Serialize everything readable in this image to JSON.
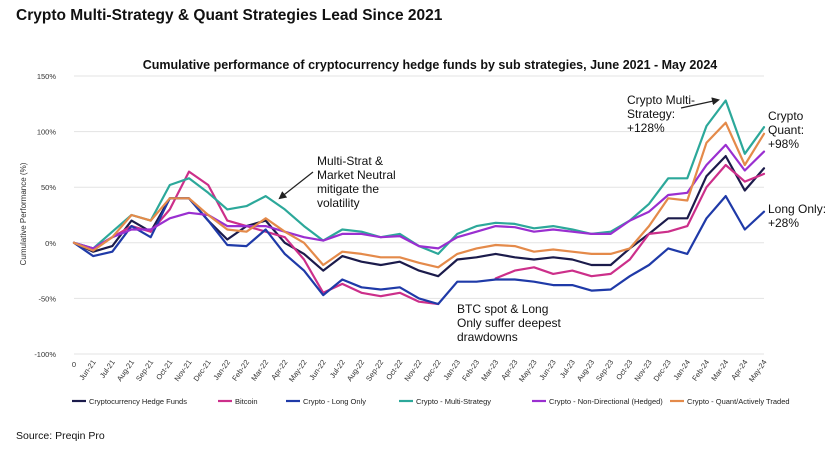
{
  "page": {
    "heading": "Crypto Multi-Strategy & Quant Strategies Lead Since 2021",
    "source": "Source: Preqin Pro"
  },
  "chart_data": {
    "type": "line",
    "title": "Cumulative performance of cryptocurrency hedge funds by sub strategies, June 2021 - May 2024",
    "xlabel": "",
    "ylabel": "Cumulative Performance (%)",
    "ylim": [
      -100,
      150
    ],
    "yticks": [
      -100,
      -50,
      0,
      50,
      100,
      150
    ],
    "ytick_labels": [
      "-100%",
      "-50%",
      "0%",
      "50%",
      "100%",
      "150%"
    ],
    "grid": true,
    "legend_position": "bottom",
    "categories": [
      "0",
      "Jun-21",
      "Jul-21",
      "Aug-21",
      "Sep-21",
      "Oct-21",
      "Nov-21",
      "Dec-21",
      "Jan-22",
      "Feb-22",
      "Mar-22",
      "Apr-22",
      "May-22",
      "Jun-22",
      "Jul-22",
      "Aug-22",
      "Sep-22",
      "Oct-22",
      "Nov-22",
      "Dec-22",
      "Jan-23",
      "Feb-23",
      "Mar-23",
      "Apr-23",
      "May-23",
      "Jun-23",
      "Jul-23",
      "Aug-23",
      "Sep-23",
      "Oct-23",
      "Nov-23",
      "Dec-23",
      "Jan-24",
      "Feb-24",
      "Mar-24",
      "Apr-24",
      "May-24"
    ],
    "series": [
      {
        "name": "Cryptocurrency Hedge Funds",
        "color": "#1b1b4b",
        "values": [
          0,
          -8,
          -3,
          20,
          10,
          40,
          40,
          20,
          3,
          15,
          20,
          0,
          -10,
          -25,
          -12,
          -17,
          -20,
          -17,
          -25,
          -30,
          -15,
          -13,
          -10,
          -13,
          -15,
          -13,
          -15,
          -20,
          -20,
          -5,
          8,
          22,
          22,
          60,
          78,
          47,
          67
        ]
      },
      {
        "name": "Bitcoin",
        "color": "#cc2f8a",
        "values": [
          0,
          -5,
          5,
          15,
          10,
          30,
          64,
          52,
          20,
          15,
          10,
          5,
          -15,
          -45,
          -37,
          -45,
          -48,
          -45,
          -53,
          -55,
          null,
          null,
          -32,
          -25,
          -22,
          -28,
          -25,
          -30,
          -28,
          -15,
          8,
          10,
          15,
          50,
          70,
          55,
          62
        ]
      },
      {
        "name": "Crypto - Long Only",
        "color": "#1f3aa8",
        "values": [
          0,
          -12,
          -8,
          15,
          5,
          40,
          40,
          20,
          -2,
          -3,
          12,
          -10,
          -25,
          -47,
          -33,
          -40,
          -42,
          -40,
          -50,
          -55,
          -35,
          -35,
          -33,
          -33,
          -35,
          -38,
          -38,
          -43,
          -42,
          -30,
          -20,
          -5,
          -10,
          22,
          42,
          12,
          28
        ]
      },
      {
        "name": "Crypto - Multi-Strategy",
        "color": "#2ca89a",
        "values": [
          0,
          -5,
          10,
          25,
          20,
          52,
          58,
          45,
          30,
          33,
          42,
          30,
          15,
          2,
          12,
          10,
          5,
          8,
          -3,
          -10,
          8,
          15,
          18,
          17,
          13,
          15,
          12,
          8,
          10,
          20,
          35,
          58,
          58,
          105,
          128,
          80,
          104
        ]
      },
      {
        "name": "Crypto - Non-Directional (Hedged)",
        "color": "#9a2fd0",
        "values": [
          0,
          -5,
          5,
          12,
          12,
          22,
          27,
          25,
          15,
          15,
          15,
          10,
          5,
          2,
          8,
          8,
          5,
          6,
          -3,
          -5,
          5,
          10,
          15,
          14,
          10,
          12,
          10,
          8,
          8,
          20,
          28,
          43,
          45,
          70,
          88,
          65,
          82
        ]
      },
      {
        "name": "Crypto - Quant/Actively Traded",
        "color": "#e48a4a",
        "values": [
          0,
          -7,
          5,
          25,
          20,
          40,
          40,
          25,
          12,
          10,
          22,
          10,
          0,
          -20,
          -8,
          -10,
          -13,
          -13,
          -18,
          -22,
          -10,
          -5,
          -2,
          -3,
          -8,
          -6,
          -8,
          -10,
          -10,
          -5,
          15,
          40,
          38,
          90,
          108,
          70,
          98
        ]
      }
    ],
    "annotations": [
      {
        "text": "Multi-Strat &",
        "line": 1
      },
      {
        "text": "Market Neutral",
        "line": 2
      },
      {
        "text": "mitigate the",
        "line": 3
      },
      {
        "text": "volatility",
        "line": 4
      },
      {
        "text": "BTC spot & Long",
        "line": 1
      },
      {
        "text": "Only suffer deepest",
        "line": 2
      },
      {
        "text": "drawdowns",
        "line": 3
      },
      {
        "text": "Crypto Multi-",
        "line": 1
      },
      {
        "text": "Strategy:",
        "line": 2
      },
      {
        "text": "+128%",
        "line": 3
      },
      {
        "text": "Crypto",
        "line": 1
      },
      {
        "text": "Quant:",
        "line": 2
      },
      {
        "text": "+98%",
        "line": 3
      },
      {
        "text": "Long Only:",
        "line": 1
      },
      {
        "text": "+28%",
        "line": 2
      }
    ]
  }
}
